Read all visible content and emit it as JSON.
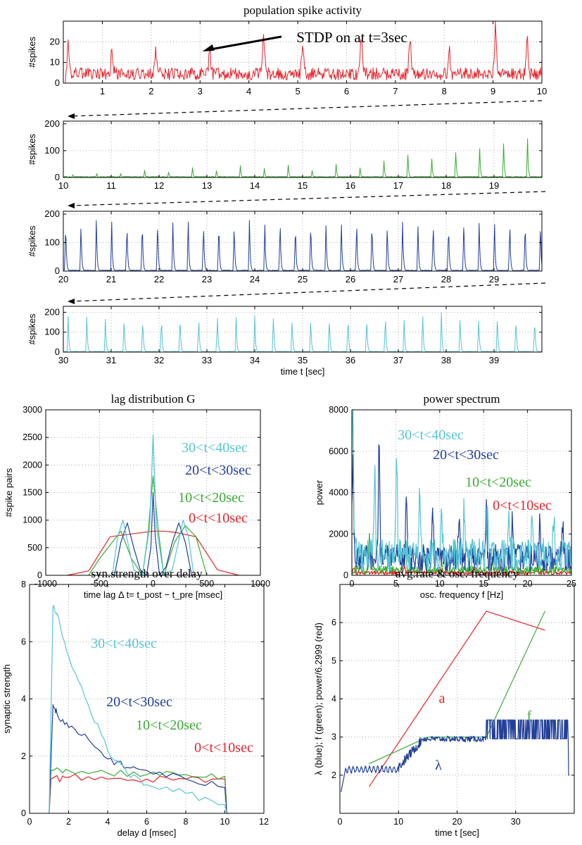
{
  "colors": {
    "red": "#e8222a",
    "green": "#3aaa35",
    "navy": "#22409a",
    "cyan": "#55c4d6",
    "axis": "#000000",
    "grid": "#999999"
  },
  "chart_data": [
    {
      "id": "pop1",
      "type": "line",
      "title": "population spike activity",
      "xlim": [
        0.2,
        10
      ],
      "ylim": [
        0,
        30
      ],
      "yticks": [
        0,
        10,
        20
      ],
      "xticks": [
        1,
        2,
        3,
        4,
        5,
        6,
        7,
        8,
        9,
        10
      ],
      "ylabel": "#spikes",
      "xlabel": "",
      "color": "red",
      "series": [
        {
          "name": "0<t<10sec",
          "kind": "noisy",
          "baseline": 5,
          "peaks": [
            [
              0.3,
              16
            ],
            [
              1.2,
              14
            ],
            [
              2.1,
              13
            ],
            [
              3.2,
              12
            ],
            [
              4.3,
              23
            ],
            [
              5.1,
              15
            ],
            [
              6.3,
              21
            ],
            [
              7.3,
              22
            ],
            [
              8.1,
              14
            ],
            [
              9.05,
              26
            ],
            [
              9.7,
              21
            ]
          ]
        }
      ],
      "annotation": {
        "text": "STDP on at t=3sec",
        "arrow_to": [
          3.05,
          15
        ]
      }
    },
    {
      "id": "pop2",
      "type": "line",
      "title": "",
      "xlim": [
        10,
        20
      ],
      "ylim": [
        0,
        210
      ],
      "yticks": [
        0,
        100,
        200
      ],
      "xticks": [
        10,
        11,
        12,
        13,
        14,
        15,
        16,
        17,
        18,
        19
      ],
      "ylabel": "#spikes",
      "xlabel": "",
      "color": "green",
      "series": [
        {
          "name": "10<t<20sec",
          "kind": "bursts",
          "start": 10.2,
          "period": 0.5,
          "heights": [
            10,
            15,
            15,
            28,
            22,
            40,
            25,
            45,
            35,
            50,
            30,
            55,
            40,
            65,
            90,
            70,
            105,
            120,
            145,
            150,
            150,
            155,
            160,
            165,
            170,
            175,
            180,
            185,
            190,
            190
          ]
        }
      ]
    },
    {
      "id": "pop3",
      "type": "line",
      "title": "",
      "xlim": [
        20,
        30
      ],
      "ylim": [
        0,
        210
      ],
      "yticks": [
        0,
        100,
        200
      ],
      "xticks": [
        20,
        21,
        22,
        23,
        24,
        25,
        26,
        27,
        28,
        29
      ],
      "ylabel": "#spikes",
      "xlabel": "",
      "color": "navy",
      "series": [
        {
          "name": "20<t<30sec",
          "kind": "bursts",
          "start": 20.05,
          "period": 0.32,
          "heights": [
            195,
            190,
            195,
            190,
            195,
            190,
            195,
            190,
            195,
            190,
            195,
            190,
            195,
            190,
            195,
            190,
            195,
            190,
            195,
            190,
            195,
            190,
            195,
            190,
            195,
            190,
            195,
            190,
            195,
            190,
            195,
            190
          ]
        }
      ]
    },
    {
      "id": "pop4",
      "type": "line",
      "title": "",
      "xlim": [
        30,
        40
      ],
      "ylim": [
        0,
        230
      ],
      "yticks": [
        0,
        100,
        200
      ],
      "xticks": [
        30,
        31,
        32,
        33,
        34,
        35,
        36,
        37,
        38,
        39
      ],
      "ylabel": "#spikes",
      "xlabel": "time t [sec]",
      "color": "cyan",
      "series": [
        {
          "name": "30<t<40sec",
          "kind": "bursts",
          "start": 30.1,
          "period": 0.39,
          "heights": [
            200,
            200,
            200,
            200,
            200,
            200,
            200,
            200,
            200,
            200,
            200,
            200,
            200,
            200,
            200,
            200,
            200,
            200,
            200,
            200,
            200,
            200,
            200,
            200,
            200,
            200
          ]
        }
      ]
    },
    {
      "id": "lag",
      "type": "line",
      "title": "lag distribution G",
      "xlim": [
        -1000,
        1000
      ],
      "ylim": [
        0,
        3000
      ],
      "xticks": [
        -1000,
        -500,
        0,
        500,
        1000
      ],
      "yticks": [
        0,
        500,
        1000,
        1500,
        2000,
        2500,
        3000
      ],
      "ylabel": "#spike pairs",
      "xlabel": "time lag Δ t= t_post − t_pre [msec]",
      "series": [
        {
          "name": "0<t<10sec",
          "color": "red",
          "x": [
            -800,
            -600,
            -400,
            -200,
            0,
            100,
            200,
            400,
            600,
            800
          ],
          "y": [
            0,
            80,
            700,
            750,
            800,
            800,
            780,
            700,
            100,
            0
          ]
        },
        {
          "name": "10<t<20sec",
          "color": "green",
          "x": [
            -600,
            -500,
            -400,
            -300,
            -200,
            -100,
            -50,
            0,
            50,
            100,
            200,
            300,
            400,
            500
          ],
          "y": [
            0,
            300,
            550,
            800,
            300,
            0,
            700,
            1800,
            800,
            0,
            600,
            900,
            700,
            0
          ]
        },
        {
          "name": "20<t<30sec",
          "color": "navy",
          "x": [
            -360,
            -300,
            -240,
            -180,
            -120,
            -60,
            -20,
            0,
            20,
            60,
            120,
            180,
            240,
            300,
            360
          ],
          "y": [
            0,
            600,
            950,
            500,
            100,
            0,
            500,
            1500,
            700,
            0,
            150,
            600,
            950,
            600,
            0
          ]
        },
        {
          "name": "30<t<40sec",
          "color": "cyan",
          "x": [
            -380,
            -330,
            -280,
            -230,
            -180,
            -100,
            -30,
            0,
            30,
            100,
            180,
            230,
            280,
            330,
            380
          ],
          "y": [
            0,
            700,
            1000,
            550,
            100,
            0,
            900,
            2550,
            900,
            0,
            100,
            550,
            1000,
            700,
            0
          ]
        }
      ],
      "labels": [
        "30<t<40sec",
        "20<t<30sec",
        "10<t<20sec",
        "0<t<10sec"
      ]
    },
    {
      "id": "power",
      "type": "line",
      "title": "power spectrum",
      "xlim": [
        0,
        25
      ],
      "ylim": [
        0,
        8000
      ],
      "xticks": [
        0,
        5,
        10,
        15,
        20,
        25
      ],
      "yticks": [
        0,
        2000,
        4000,
        6000,
        8000
      ],
      "ylabel": "power",
      "xlabel": "osc. frequency f [Hz]",
      "series": [
        {
          "name": "0<t<10sec",
          "color": "red",
          "kind": "noisy",
          "baseline": 150,
          "peaks": [
            [
              0.2,
              300
            ],
            [
              6,
              350
            ],
            [
              10,
              300
            ],
            [
              14,
              350
            ],
            [
              17,
              300
            ]
          ]
        },
        {
          "name": "10<t<20sec",
          "color": "green",
          "kind": "noisy",
          "baseline": 300,
          "peaks": [
            [
              2.0,
              1600
            ],
            [
              4.2,
              700
            ],
            [
              6.1,
              1500
            ],
            [
              8.2,
              900
            ],
            [
              10.5,
              600
            ],
            [
              12,
              500
            ],
            [
              16,
              400
            ],
            [
              22,
              300
            ]
          ]
        },
        {
          "name": "20<t<30sec",
          "color": "navy",
          "kind": "noisy",
          "baseline": 1000,
          "peaks": [
            [
              0.1,
              4600
            ],
            [
              3.1,
              5500
            ],
            [
              6.2,
              3000
            ],
            [
              9.2,
              2700
            ],
            [
              12.2,
              1900
            ],
            [
              15.3,
              2200
            ],
            [
              18.3,
              2000
            ],
            [
              21.4,
              1800
            ],
            [
              24,
              1600
            ]
          ]
        },
        {
          "name": "30<t<40sec",
          "color": "cyan",
          "kind": "noisy",
          "baseline": 1200,
          "peaks": [
            [
              0.1,
              7200
            ],
            [
              2.6,
              3800
            ],
            [
              5.1,
              5000
            ],
            [
              7.7,
              3000
            ],
            [
              10.2,
              2700
            ],
            [
              12.8,
              2300
            ],
            [
              15.4,
              2100
            ],
            [
              17.9,
              2000
            ],
            [
              20.5,
              1800
            ],
            [
              23,
              1800
            ]
          ]
        }
      ],
      "labels": [
        "30<t<40sec",
        "20<t<30sec",
        "10<t<20sec",
        "0<t<10sec"
      ]
    },
    {
      "id": "syn",
      "type": "line",
      "title": "syn.strength over delay",
      "xlim": [
        0,
        12
      ],
      "ylim": [
        0,
        8
      ],
      "xticks": [
        0,
        2,
        4,
        6,
        8,
        10,
        12
      ],
      "yticks": [
        0,
        2,
        4,
        6,
        8
      ],
      "ylabel": "synaptic strength",
      "xlabel": "delay d [msec]",
      "series": [
        {
          "name": "0<t<10sec",
          "color": "red",
          "x": [
            1,
            1.1,
            2,
            4,
            6,
            8,
            10,
            10.1,
            10.2
          ],
          "y": [
            0,
            1.2,
            1.25,
            1.2,
            1.2,
            1.2,
            1.2,
            0,
            0
          ]
        },
        {
          "name": "10<t<20sec",
          "color": "green",
          "x": [
            1,
            1.1,
            2,
            4,
            6,
            8,
            10,
            10.1,
            10.2
          ],
          "y": [
            0,
            1.5,
            1.5,
            1.4,
            1.35,
            1.35,
            1.3,
            0,
            0
          ]
        },
        {
          "name": "20<t<30sec",
          "color": "navy",
          "x": [
            1,
            1.2,
            1.4,
            2,
            3,
            4,
            5,
            6,
            8,
            10,
            10.1
          ],
          "y": [
            0,
            3.8,
            3.5,
            3.0,
            2.6,
            1.9,
            1.6,
            1.5,
            1.2,
            0.9,
            0
          ]
        },
        {
          "name": "30<t<40sec",
          "color": "cyan",
          "x": [
            1,
            1.2,
            1.4,
            2,
            3,
            4,
            5,
            6,
            8,
            10,
            10.1
          ],
          "y": [
            0,
            7.2,
            7.0,
            5.5,
            3.8,
            2.2,
            1.4,
            1.0,
            0.7,
            0.3,
            0
          ]
        }
      ],
      "labels": [
        "30<t<40sec",
        "20<t<30sec",
        "10<t<20sec",
        "0<t<10sec"
      ]
    },
    {
      "id": "rate",
      "type": "line",
      "title": "avg.rate & osc. frequency",
      "xlim": [
        0,
        40
      ],
      "ylim": [
        1,
        7
      ],
      "xticks": [
        0,
        10,
        20,
        30
      ],
      "yticks": [
        2,
        3,
        4,
        5,
        6
      ],
      "ylabel": "λ (blue); f (green); power/6.2999 (red)",
      "xlabel": "time t [sec]",
      "series": [
        {
          "name": "a",
          "color": "red",
          "x": [
            5,
            15,
            25,
            35
          ],
          "y": [
            1.7,
            4.0,
            6.3,
            5.8
          ]
        },
        {
          "name": "f",
          "color": "green",
          "x": [
            5,
            15,
            25,
            35
          ],
          "y": [
            2.3,
            3.0,
            3.0,
            6.3
          ]
        },
        {
          "name": "λ",
          "color": "navy",
          "kind": "rate"
        }
      ],
      "labels": {
        "a": "a",
        "f": "f",
        "lambda": "λ"
      }
    }
  ]
}
